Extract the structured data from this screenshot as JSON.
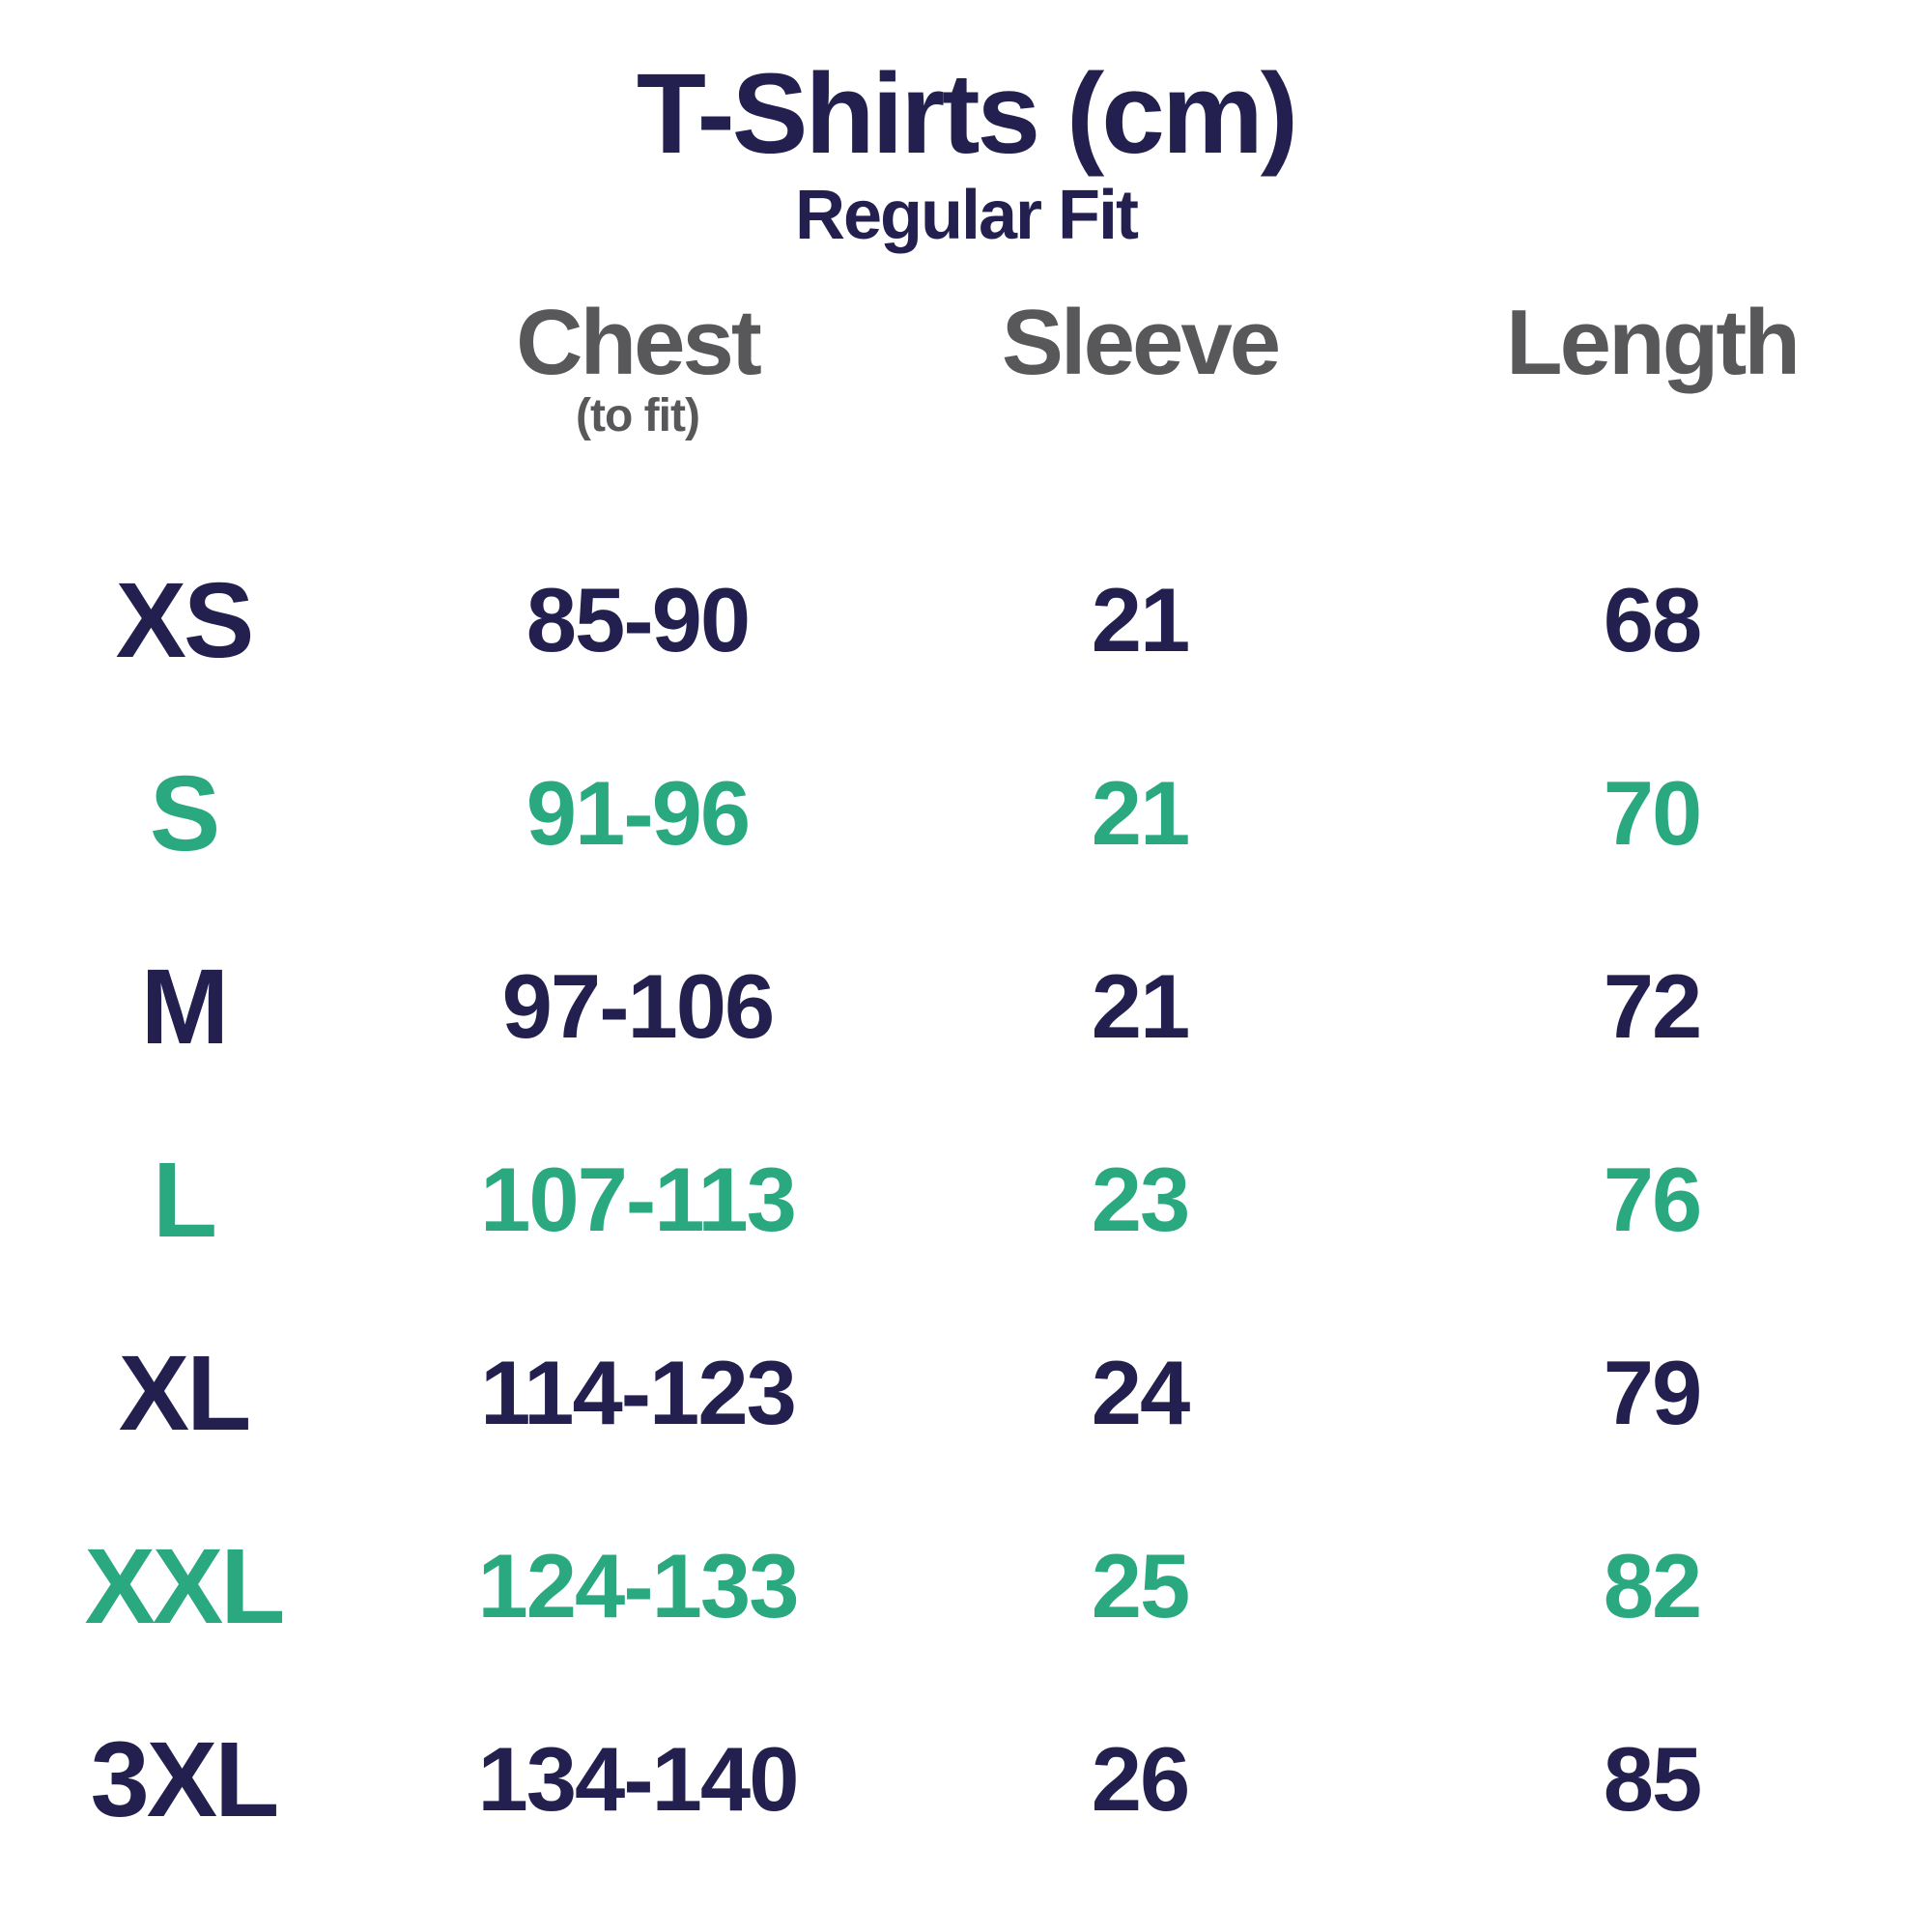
{
  "title": "T-Shirts (cm)",
  "subtitle": "Regular Fit",
  "units": "cm",
  "colors": {
    "navy": "#232050",
    "teal": "#2aa87f",
    "header_gray": "#58585a",
    "background": "#ffffff"
  },
  "columns": [
    {
      "label": "Chest",
      "sublabel": "(to fit)"
    },
    {
      "label": "Sleeve"
    },
    {
      "label": "Length"
    }
  ],
  "rows": [
    {
      "size": "XS",
      "chest": "85-90",
      "sleeve": "21",
      "length": "68",
      "color": "navy"
    },
    {
      "size": "S",
      "chest": "91-96",
      "sleeve": "21",
      "length": "70",
      "color": "teal"
    },
    {
      "size": "M",
      "chest": "97-106",
      "sleeve": "21",
      "length": "72",
      "color": "navy"
    },
    {
      "size": "L",
      "chest": "107-113",
      "sleeve": "23",
      "length": "76",
      "color": "teal"
    },
    {
      "size": "XL",
      "chest": "114-123",
      "sleeve": "24",
      "length": "79",
      "color": "navy"
    },
    {
      "size": "XXL",
      "chest": "124-133",
      "sleeve": "25",
      "length": "82",
      "color": "teal"
    },
    {
      "size": "3XL",
      "chest": "134-140",
      "sleeve": "26",
      "length": "85",
      "color": "navy"
    }
  ],
  "chart_data": {
    "type": "table",
    "title": "T-Shirts (cm)",
    "subtitle": "Regular Fit",
    "columns": [
      "Size",
      "Chest (to fit)",
      "Sleeve",
      "Length"
    ],
    "rows": [
      [
        "XS",
        "85-90",
        21,
        68
      ],
      [
        "S",
        "91-96",
        21,
        70
      ],
      [
        "M",
        "97-106",
        21,
        72
      ],
      [
        "L",
        "107-113",
        23,
        76
      ],
      [
        "XL",
        "114-123",
        24,
        79
      ],
      [
        "XXL",
        "124-133",
        25,
        82
      ],
      [
        "3XL",
        "134-140",
        26,
        85
      ]
    ],
    "units": "cm",
    "layout_hints": {
      "row_color_alternation": [
        "navy",
        "teal"
      ],
      "header_color": "#58585a"
    }
  }
}
